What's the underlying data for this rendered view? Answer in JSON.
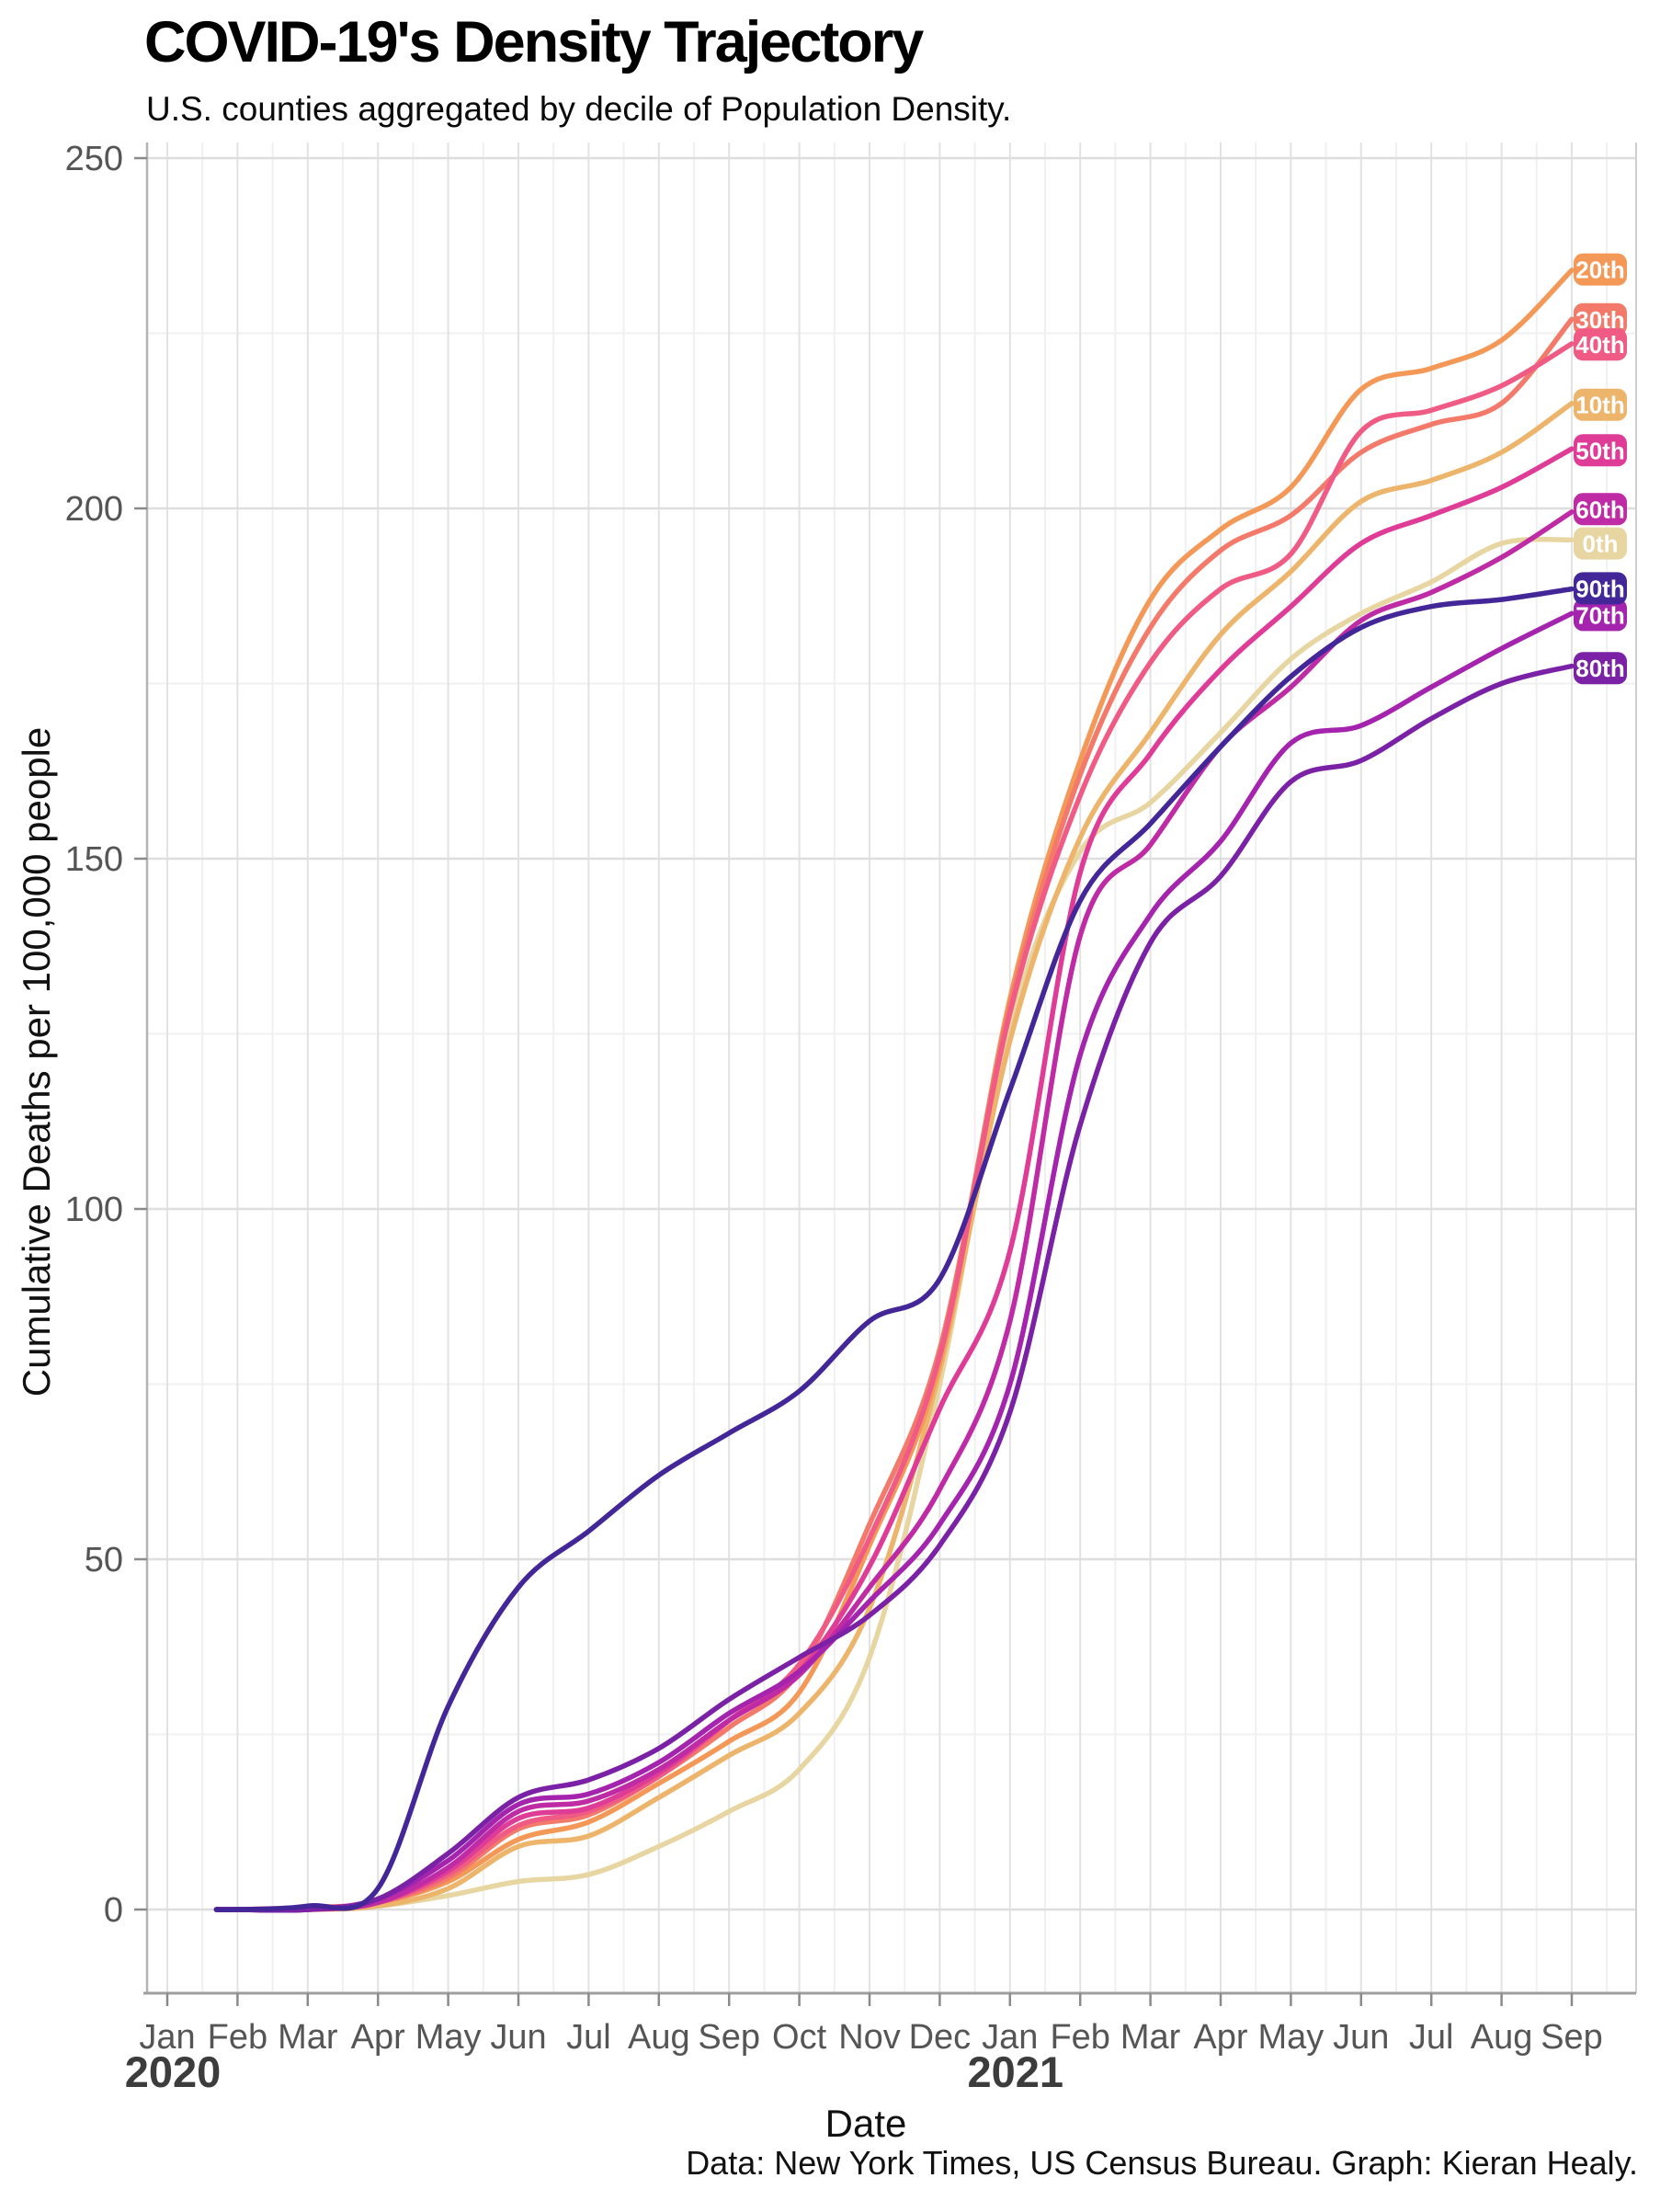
{
  "chart_data": {
    "type": "line",
    "title": "COVID-19's Density Trajectory",
    "subtitle": "U.S. counties aggregated by decile of Population Density.",
    "xlabel": "Date",
    "ylabel": "Cumulative Deaths per 100,000 people",
    "caption": "Data: New York Times, US Census Bureau. Graph: Kieran Healy.",
    "ylim": [
      0,
      250
    ],
    "yticks": [
      0,
      50,
      100,
      150,
      200,
      250
    ],
    "grid": "major and minor, light gray on white",
    "legend_position": "right edge badges at line endpoints",
    "x_unit": "months since Jan 2020",
    "x_month_labels": [
      "Jan",
      "Feb",
      "Mar",
      "Apr",
      "May",
      "Jun",
      "Jul",
      "Aug",
      "Sep",
      "Oct",
      "Nov",
      "Dec",
      "Jan",
      "Feb",
      "Mar",
      "Apr",
      "May",
      "Jun",
      "Jul",
      "Aug",
      "Sep"
    ],
    "year_labels": [
      {
        "label": "2020",
        "month_index": 0
      },
      {
        "label": "2021",
        "month_index": 12
      }
    ],
    "x": [
      0.7,
      1,
      2,
      3,
      4,
      5,
      6,
      7,
      8,
      9,
      10,
      11,
      12,
      13,
      14,
      15,
      16,
      17,
      18,
      19,
      20
    ],
    "series": [
      {
        "name": "0th",
        "color": "#E7D5A2",
        "badge_value": 195,
        "values": [
          0,
          0,
          0,
          0.5,
          2,
          4,
          5,
          9,
          14,
          20,
          36,
          75,
          126,
          151,
          158,
          168,
          178.5,
          185,
          189.5,
          195,
          195.5
        ]
      },
      {
        "name": "10th",
        "color": "#EDB56B",
        "badge_value": 214.8,
        "values": [
          0,
          0,
          0,
          0.5,
          3,
          9,
          10.5,
          16,
          22,
          28,
          43,
          77,
          124,
          153,
          168,
          182,
          191,
          201,
          204,
          208,
          215
        ]
      },
      {
        "name": "20th",
        "color": "#F49858",
        "badge_value": 234.1,
        "values": [
          0,
          0,
          0.2,
          1,
          4,
          10,
          12.5,
          18,
          24,
          31,
          52,
          78,
          130,
          164,
          187,
          197,
          203,
          217,
          220,
          224,
          234
        ]
      },
      {
        "name": "30th",
        "color": "#F37A6B",
        "badge_value": 227,
        "values": [
          0,
          0,
          0.3,
          1,
          4.5,
          11.5,
          13.5,
          19,
          26,
          34,
          55,
          80,
          129,
          162,
          183,
          194,
          199,
          208,
          212,
          215,
          227
        ]
      },
      {
        "name": "40th",
        "color": "#EF5B84",
        "badge_value": 223.4,
        "values": [
          0,
          0,
          0.2,
          1,
          5,
          12,
          14,
          19,
          27,
          35,
          53,
          79,
          128,
          159,
          178,
          188.5,
          193.5,
          211,
          214,
          217.5,
          223.5
        ]
      },
      {
        "name": "50th",
        "color": "#DE3C96",
        "badge_value": 208.3,
        "values": [
          0,
          0,
          0,
          1,
          5.5,
          13,
          14.5,
          19.5,
          27,
          34,
          49,
          71.5,
          94,
          148,
          165,
          177,
          186,
          195,
          199,
          203,
          208.5
        ]
      },
      {
        "name": "60th",
        "color": "#BE2BA5",
        "badge_value": 199.9,
        "values": [
          0,
          0,
          0,
          1,
          6,
          14,
          15.5,
          20,
          27,
          33.5,
          46,
          60,
          84,
          139,
          152,
          166,
          174.5,
          184,
          188,
          193,
          199.5
        ]
      },
      {
        "name": "70th",
        "color": "#A424AE",
        "badge_value": 184.8,
        "values": [
          0,
          0,
          0,
          1.5,
          7,
          15,
          16.5,
          21,
          28,
          34,
          44,
          55,
          75,
          122,
          142,
          152.5,
          166.5,
          169,
          174.5,
          180,
          185
        ]
      },
      {
        "name": "80th",
        "color": "#7A21A6",
        "badge_value": 177.2,
        "values": [
          0,
          0,
          0,
          1.5,
          8,
          16,
          18.5,
          23,
          30,
          36,
          42,
          52,
          71,
          112,
          138,
          147.5,
          161,
          164,
          170,
          175,
          177.5
        ]
      },
      {
        "name": "90th",
        "color": "#432798",
        "badge_value": 188.6,
        "values": [
          0,
          0,
          0.5,
          3,
          29,
          46,
          54,
          62,
          68,
          74,
          84,
          90,
          117,
          144,
          155,
          166,
          176,
          183,
          186,
          187,
          188.5
        ]
      }
    ]
  }
}
